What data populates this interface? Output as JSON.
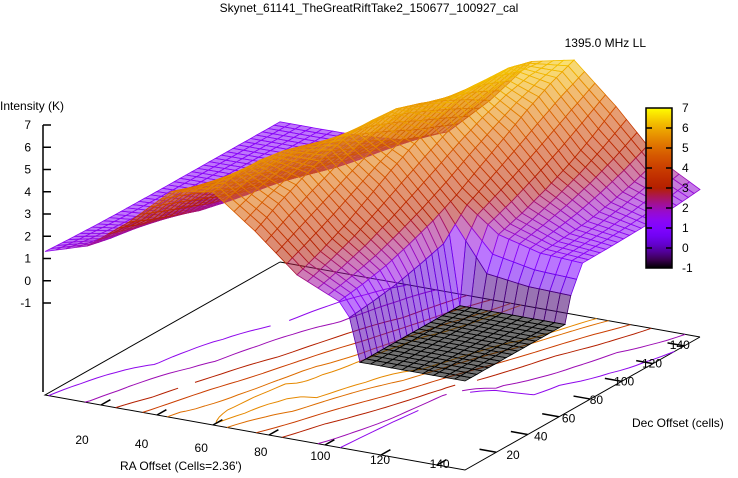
{
  "chart_data": {
    "type": "surface3d",
    "title": "Skynet_61141_TheGreatRiftTake2_150677_100927_cal",
    "legend": {
      "label": "1395.0 MHz LL",
      "placement": "top-right"
    },
    "xlabel": "RA Offset (Cells=2.36')",
    "ylabel": "Dec Offset (cells)",
    "zlabel": "Intensity (K)",
    "x_ticks": [
      "20",
      "40",
      "60",
      "80",
      "100",
      "120",
      "140"
    ],
    "y_ticks": [
      "20",
      "40",
      "60",
      "80",
      "100",
      "120",
      "140"
    ],
    "z_ticks": [
      "-1",
      "0",
      "1",
      "2",
      "3",
      "4",
      "5",
      "6",
      "7"
    ],
    "cb_ticks": [
      "-1",
      "0",
      "1",
      "2",
      "3",
      "4",
      "5",
      "6",
      "7"
    ],
    "xlim": [
      0,
      150
    ],
    "ylim": [
      0,
      150
    ],
    "zlim": [
      -1,
      7
    ],
    "cbrange": [
      -1,
      7
    ],
    "floor_level": -5,
    "contour_levels": [
      1.5,
      2,
      3,
      4,
      5,
      5.5
    ],
    "grid_x": [
      0,
      15,
      30,
      45,
      60,
      75,
      90,
      105,
      120,
      135,
      150
    ],
    "grid_y": [
      0,
      15,
      30,
      45,
      60,
      75,
      90,
      105,
      120,
      135,
      150
    ],
    "z": [
      [
        1.45,
        2.03,
        3.45,
        5.15,
        5.47,
        4.05,
        2.42,
        1.57,
        -1,
        -1,
        -1
      ],
      [
        1.39,
        1.78,
        2.97,
        4.78,
        5.7,
        4.69,
        2.88,
        1.74,
        -1,
        -1,
        -1
      ],
      [
        1.35,
        1.62,
        2.56,
        4.32,
        5.71,
        5.22,
        3.42,
        1.98,
        -1,
        -1,
        -1
      ],
      [
        1.32,
        1.48,
        2.17,
        3.78,
        5.53,
        5.67,
        4.06,
        2.36,
        -1,
        -1,
        -1
      ],
      [
        1.31,
        1.41,
        1.91,
        3.27,
        5.2,
        6.0,
        4.73,
        2.8,
        -1,
        -1,
        -1
      ],
      [
        1.3,
        1.36,
        1.68,
        2.79,
        4.71,
        6.05,
        5.33,
        3.36,
        1.92,
        1.42,
        1.31
      ],
      [
        1.3,
        1.33,
        1.55,
        2.38,
        4.14,
        5.96,
        5.86,
        4.04,
        2.28,
        1.52,
        1.33
      ],
      [
        1.3,
        1.32,
        1.45,
        2.05,
        3.6,
        5.6,
        6.25,
        4.7,
        2.75,
        1.65,
        1.36
      ],
      [
        1.3,
        1.31,
        1.38,
        1.81,
        3.03,
        5.13,
        6.4,
        5.38,
        3.29,
        1.91,
        1.4
      ],
      [
        1.3,
        1.3,
        1.34,
        1.61,
        2.6,
        4.58,
        6.34,
        5.98,
        3.95,
        2.24,
        1.51
      ],
      [
        1.3,
        1.3,
        1.32,
        1.49,
        2.2,
        3.95,
        6.04,
        6.44,
        4.69,
        2.68,
        1.63
      ]
    ]
  }
}
